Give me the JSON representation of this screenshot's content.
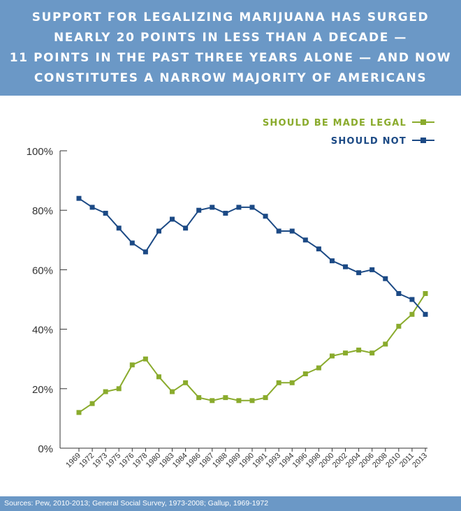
{
  "title_lines": [
    "SUPPORT FOR LEGALIZING MARIJUANA HAS SURGED",
    "NEARLY 20 POINTS IN LESS THAN A DECADE —",
    "11 POINTS IN THE PAST THREE YEARS ALONE — AND NOW",
    "CONSTITUTES A NARROW MAJORITY OF AMERICANS"
  ],
  "source": "Sources: Pew, 2010-2013; General Social Survey, 1973-2008; Gallup, 1969-1972",
  "colors": {
    "header_bg": "#6b98c6",
    "legal": "#8aab2d",
    "not": "#1c4a85",
    "axis": "#333333"
  },
  "chart_data": {
    "type": "line",
    "title": "Support for legalizing marijuana",
    "xlabel": "",
    "ylabel": "",
    "ylim": [
      0,
      100
    ],
    "yticks": [
      "0%",
      "20%",
      "40%",
      "60%",
      "80%",
      "100%"
    ],
    "ytick_values": [
      0,
      20,
      40,
      60,
      80,
      100
    ],
    "legend_position": "top-right",
    "categories": [
      "1969",
      "1972",
      "1973",
      "1975",
      "1976",
      "1978",
      "1980",
      "1983",
      "1984",
      "1986",
      "1987",
      "1988",
      "1989",
      "1990",
      "1991",
      "1993",
      "1994",
      "1996",
      "1998",
      "2000",
      "2002",
      "2004",
      "2006",
      "2008",
      "2010",
      "2011",
      "2013"
    ],
    "series": [
      {
        "name": "SHOULD BE MADE LEGAL",
        "color": "#8aab2d",
        "values": [
          12,
          15,
          19,
          20,
          28,
          30,
          24,
          19,
          22,
          17,
          16,
          17,
          16,
          16,
          17,
          22,
          22,
          25,
          27,
          31,
          32,
          33,
          32,
          35,
          41,
          45,
          52
        ]
      },
      {
        "name": "SHOULD NOT",
        "color": "#1c4a85",
        "values": [
          84,
          81,
          79,
          74,
          69,
          66,
          73,
          77,
          74,
          80,
          81,
          79,
          81,
          81,
          78,
          73,
          73,
          70,
          67,
          63,
          61,
          59,
          60,
          57,
          52,
          50,
          45
        ]
      }
    ]
  }
}
